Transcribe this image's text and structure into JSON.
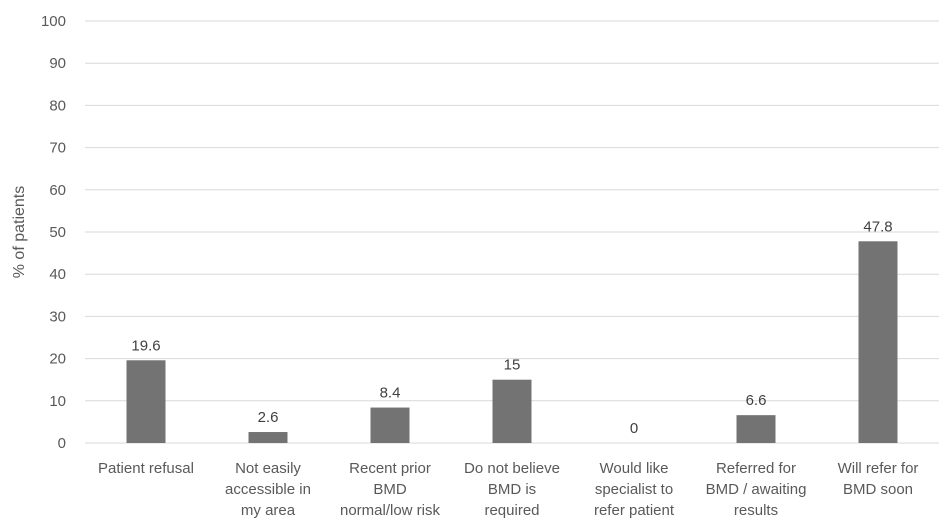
{
  "chart_data": {
    "type": "bar",
    "categories": [
      [
        "Patient refusal"
      ],
      [
        "Not easily",
        "accessible in",
        "my area"
      ],
      [
        "Recent prior",
        "BMD",
        "normal/low risk"
      ],
      [
        "Do not believe",
        "BMD is",
        "required"
      ],
      [
        "Would like",
        "specialist to",
        "refer patient"
      ],
      [
        "Referred for",
        "BMD / awaiting",
        "results"
      ],
      [
        "Will refer for",
        "BMD soon"
      ]
    ],
    "values": [
      19.6,
      2.6,
      8.4,
      15,
      0,
      6.6,
      47.8
    ],
    "value_labels": [
      "19.6",
      "2.6",
      "8.4",
      "15",
      "0",
      "6.6",
      "47.8"
    ],
    "ylabel": "% of patients",
    "ylim": [
      0,
      100
    ],
    "yticks": [
      "0",
      "10",
      "20",
      "30",
      "40",
      "50",
      "60",
      "70",
      "80",
      "90",
      "100"
    ],
    "grid": true,
    "bar_color": "#737373",
    "grid_color": "#d9d9d9"
  }
}
